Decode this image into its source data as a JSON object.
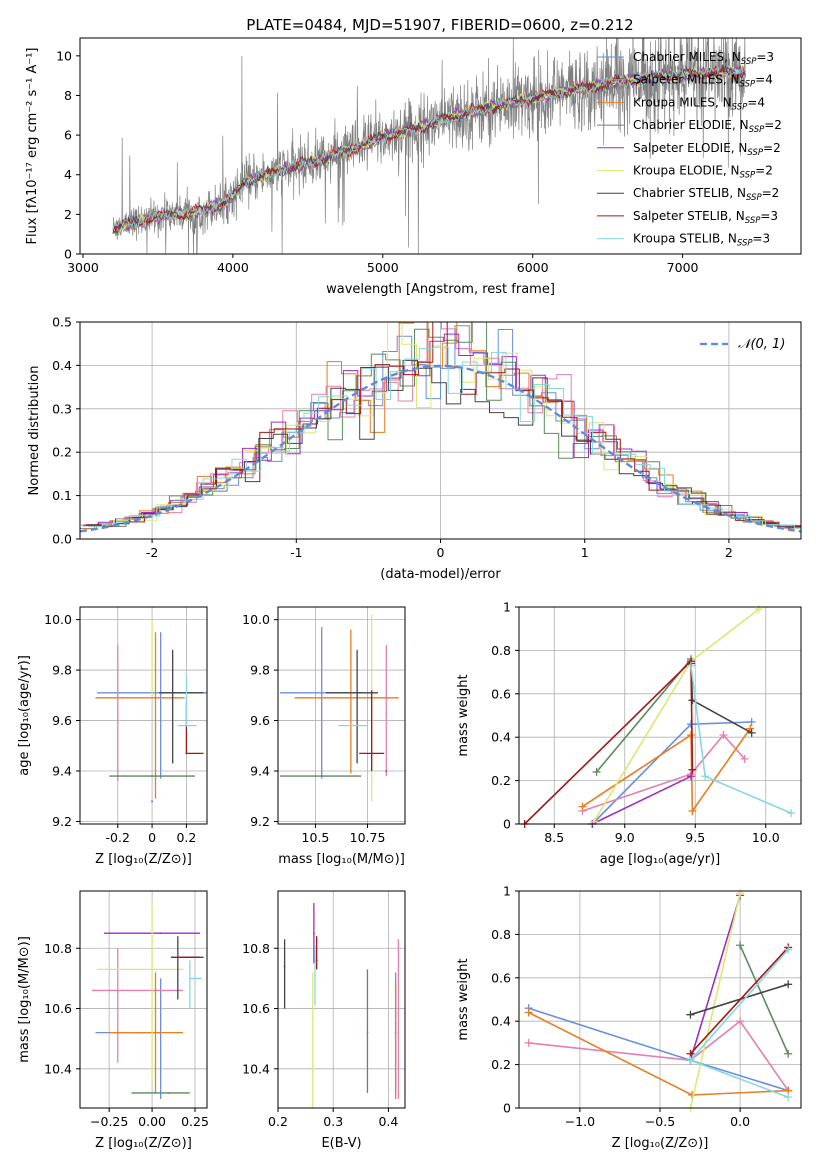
{
  "figure_title": "PLATE=0484, MJD=51907, FIBERID=0600, z=0.212",
  "models": [
    {
      "label": "Chabrier MILES, N",
      "nssp": "=3",
      "color": "#6a8fdd"
    },
    {
      "label": "Salpeter MILES, N",
      "nssp": "=4",
      "color": "#e57fb1"
    },
    {
      "label": "Kroupa MILES, N",
      "nssp": "=4",
      "color": "#e87d22"
    },
    {
      "label": "Chabrier ELODIE, N",
      "nssp": "=2",
      "color": "#5c8b5c"
    },
    {
      "label": "Salpeter ELODIE, N",
      "nssp": "=2",
      "color": "#9b30c0"
    },
    {
      "label": "Kroupa ELODIE, N",
      "nssp": "=2",
      "color": "#dce873"
    },
    {
      "label": "Chabrier STELIB, N",
      "nssp": "=2",
      "color": "#444444"
    },
    {
      "label": "Salpeter STELIB, N",
      "nssp": "=3",
      "color": "#a01818"
    },
    {
      "label": "Kroupa STELIB, N",
      "nssp": "=3",
      "color": "#86d8e0"
    }
  ],
  "nssp_sub": "SSP",
  "data_color": "#808080",
  "normal_curve_color": "#5b8bd9",
  "chart_data": [
    {
      "id": "spectrum",
      "type": "line",
      "xlabel": "wavelength [Angstrom, rest frame]",
      "ylabel": "Flux [fλ10⁻¹⁷ erg cm⁻² s⁻¹ A⁻¹]",
      "xlim": [
        2980,
        7790
      ],
      "ylim": [
        0,
        10.9
      ],
      "xticks": [
        3000,
        4000,
        5000,
        6000,
        7000
      ],
      "yticks": [
        0,
        2,
        4,
        6,
        8,
        10
      ],
      "grid": false,
      "legend": "upper right",
      "wavelength_range": [
        3200,
        7420
      ],
      "continuum": [
        [
          3200,
          1.3
        ],
        [
          3500,
          1.9
        ],
        [
          3800,
          2.2
        ],
        [
          3950,
          2.6
        ],
        [
          4100,
          3.7
        ],
        [
          4300,
          4.2
        ],
        [
          4500,
          4.6
        ],
        [
          4800,
          5.3
        ],
        [
          5000,
          5.9
        ],
        [
          5300,
          6.5
        ],
        [
          5600,
          7.2
        ],
        [
          5900,
          7.7
        ],
        [
          6200,
          8.2
        ],
        [
          6500,
          8.6
        ],
        [
          6800,
          8.9
        ],
        [
          7100,
          9.1
        ],
        [
          7420,
          9.2
        ]
      ]
    },
    {
      "id": "residuals",
      "type": "histogram",
      "xlabel": "(data-model)/error",
      "ylabel": "Normed distribution",
      "xlim": [
        -2.5,
        2.5
      ],
      "ylim": [
        0,
        0.5
      ],
      "xticks": [
        -2,
        -1,
        0,
        1,
        2
      ],
      "yticks": [
        0.0,
        0.1,
        0.2,
        0.3,
        0.4,
        0.5
      ],
      "grid": true,
      "legend": "upper right",
      "curve_label": "𝒩(0, 1)",
      "bins": 50
    },
    {
      "id": "age_vs_Z",
      "type": "errorbar",
      "xlabel": "Z [log₁₀(Z/Z⊙)]",
      "ylabel": "age  [log₁₀(age/yr)]",
      "xlim": [
        -0.42,
        0.32
      ],
      "ylim": [
        9.19,
        10.05
      ],
      "xticks": [
        -0.2,
        0.0,
        0.2
      ],
      "ytick_labels": [
        "9.2",
        "9.4",
        "9.6",
        "9.8",
        "10.0"
      ],
      "yticks": [
        9.2,
        9.4,
        9.6,
        9.8,
        10.0
      ],
      "grid": true,
      "points": [
        {
          "m": 0,
          "x": 0.05,
          "xe": [
            0.37,
            0.27
          ],
          "y": 9.71,
          "ye": [
            0.34,
            0.24
          ]
        },
        {
          "m": 1,
          "x": -0.2,
          "xe": [
            0.0,
            0.0
          ],
          "y": 9.63,
          "ye": [
            0.27,
            0.27
          ]
        },
        {
          "m": 2,
          "x": 0.02,
          "xe": [
            0.35,
            0.17
          ],
          "y": 9.69,
          "ye": [
            0.4,
            0.26
          ]
        },
        {
          "m": 3,
          "x": 0.0,
          "xe": [
            0.25,
            0.25
          ],
          "y": 9.38,
          "ye": [
            0.0,
            0.0
          ]
        },
        {
          "m": 4,
          "x": 0.0,
          "xe": [
            0.0,
            0.0
          ],
          "y": 9.28,
          "ye": [
            0.0,
            0.0
          ]
        },
        {
          "m": 5,
          "x": 0.0,
          "xe": [
            0.0,
            0.0
          ],
          "y": 9.7,
          "ye": [
            0.0,
            0.3
          ]
        },
        {
          "m": 6,
          "x": 0.12,
          "xe": [
            0.08,
            0.18
          ],
          "y": 9.71,
          "ye": [
            0.28,
            0.17
          ]
        },
        {
          "m": 7,
          "x": 0.2,
          "xe": [
            0.0,
            0.1
          ],
          "y": 9.47,
          "ye": [
            0.0,
            0.2
          ]
        },
        {
          "m": 8,
          "x": 0.2,
          "xe": [
            0.05,
            0.06
          ],
          "y": 9.58,
          "ye": [
            0.0,
            0.2
          ]
        }
      ]
    },
    {
      "id": "age_vs_mass",
      "type": "errorbar",
      "xlabel": "mass [log₁₀(M/M⊙)]",
      "ylabel": "",
      "xlim": [
        10.32,
        10.93
      ],
      "ylim": [
        9.19,
        10.05
      ],
      "xticks": [
        10.5,
        10.75
      ],
      "ytick_labels": [
        "9.2",
        "9.4",
        "9.6",
        "9.8",
        "10.0"
      ],
      "yticks": [
        9.2,
        9.4,
        9.6,
        9.8,
        10.0
      ],
      "grid": true,
      "points": [
        {
          "m": 0,
          "x": 10.53,
          "xe": [
            0.2,
            0.2
          ],
          "y": 9.71,
          "ye": [
            0.34,
            0.26
          ]
        },
        {
          "m": 1,
          "x": 10.84,
          "xe": [
            0.0,
            0.0
          ],
          "y": 9.63,
          "ye": [
            0.25,
            0.27
          ]
        },
        {
          "m": 2,
          "x": 10.67,
          "xe": [
            0.27,
            0.23
          ],
          "y": 9.69,
          "ye": [
            0.3,
            0.27
          ]
        },
        {
          "m": 3,
          "x": 10.53,
          "xe": [
            0.2,
            0.19
          ],
          "y": 9.38,
          "ye": [
            0.0,
            0.0
          ]
        },
        {
          "m": 4,
          "x": 10.84,
          "xe": [
            0.0,
            0.0
          ],
          "y": 9.4,
          "ye": [
            0.0,
            0.0
          ]
        },
        {
          "m": 5,
          "x": 10.77,
          "xe": [
            0.0,
            0.0
          ],
          "y": 9.65,
          "ye": [
            0.37,
            0.37
          ]
        },
        {
          "m": 6,
          "x": 10.7,
          "xe": [
            0.15,
            0.1
          ],
          "y": 9.71,
          "ye": [
            0.28,
            0.17
          ]
        },
        {
          "m": 7,
          "x": 10.77,
          "xe": [
            0.06,
            0.06
          ],
          "y": 9.47,
          "ye": [
            0.07,
            0.25
          ]
        },
        {
          "m": 8,
          "x": 10.71,
          "xe": [
            0.1,
            0.04
          ],
          "y": 9.58,
          "ye": [
            0.0,
            0.0
          ]
        }
      ]
    },
    {
      "id": "weight_vs_age",
      "type": "line",
      "xlabel": "age  [log₁₀(age/yr)]",
      "ylabel": "mass weight",
      "xlim": [
        8.25,
        10.25
      ],
      "ylim": [
        0,
        1
      ],
      "xticks": [
        8.5,
        9.0,
        9.5,
        10.0
      ],
      "xtick_labels": [
        "8.5",
        "9.0",
        "9.5",
        "10.0"
      ],
      "yticks": [
        0,
        0.2,
        0.4,
        0.6,
        0.8,
        1.0
      ],
      "grid": true,
      "series": [
        {
          "m": 0,
          "x": [
            8.77,
            9.47,
            9.9
          ],
          "y": [
            0.0,
            0.46,
            0.47
          ]
        },
        {
          "m": 1,
          "x": [
            8.7,
            9.47,
            9.7,
            9.85
          ],
          "y": [
            0.06,
            0.23,
            0.41,
            0.3
          ]
        },
        {
          "m": 2,
          "x": [
            8.7,
            9.47,
            9.48,
            9.89
          ],
          "y": [
            0.08,
            0.41,
            0.06,
            0.44
          ]
        },
        {
          "m": 3,
          "x": [
            8.8,
            9.47
          ],
          "y": [
            0.24,
            0.76
          ]
        },
        {
          "m": 4,
          "x": [
            8.77,
            9.47
          ],
          "y": [
            0.0,
            0.22
          ]
        },
        {
          "m": 5,
          "x": [
            8.78,
            9.47,
            9.95
          ],
          "y": [
            0.01,
            0.75,
            0.99
          ]
        },
        {
          "m": 6,
          "x": [
            9.47,
            9.48,
            9.9
          ],
          "y": [
            0.74,
            0.57,
            0.42
          ]
        },
        {
          "m": 7,
          "x": [
            8.29,
            9.47,
            9.48
          ],
          "y": [
            0.0,
            0.75,
            0.25
          ]
        },
        {
          "m": 8,
          "x": [
            9.47,
            9.57,
            10.18
          ],
          "y": [
            0.73,
            0.22,
            0.05
          ]
        }
      ]
    },
    {
      "id": "mass_vs_Z",
      "type": "errorbar",
      "xlabel": "Z [log₁₀(Z/Z⊙)]",
      "ylabel": "mass [log₁₀(M/M⊙)]",
      "xlim": [
        -0.42,
        0.32
      ],
      "ylim": [
        10.27,
        10.99
      ],
      "xticks": [
        -0.25,
        0.0,
        0.25
      ],
      "xtick_labels": [
        "−0.25",
        "0.00",
        "0.25"
      ],
      "yticks": [
        10.4,
        10.6,
        10.8
      ],
      "ytick_labels": [
        "10.4",
        "10.6",
        "10.8"
      ],
      "grid": true,
      "points": [
        {
          "m": 0,
          "x": 0.05,
          "xe": [
            0.38,
            0.0
          ],
          "y": 10.52,
          "ye": [
            0.22,
            0.18
          ]
        },
        {
          "m": 1,
          "x": -0.2,
          "xe": [
            0.15,
            0.38
          ],
          "y": 10.66,
          "ye": [
            0.24,
            0.14
          ]
        },
        {
          "m": 2,
          "x": 0.02,
          "xe": [
            0.27,
            0.16
          ],
          "y": 10.52,
          "ye": [
            0.2,
            0.2
          ]
        },
        {
          "m": 3,
          "x": 0.1,
          "xe": [
            0.22,
            0.12
          ],
          "y": 10.32,
          "ye": [
            0.0,
            0.0
          ]
        },
        {
          "m": 4,
          "x": 0.05,
          "xe": [
            0.33,
            0.23
          ],
          "y": 10.85,
          "ye": [
            0.0,
            0.0
          ]
        },
        {
          "m": 5,
          "x": 0.0,
          "xe": [
            0.32,
            0.18
          ],
          "y": 10.73,
          "ye": [
            0.37,
            0.22
          ]
        },
        {
          "m": 6,
          "x": 0.15,
          "xe": [
            0.0,
            0.15
          ],
          "y": 10.77,
          "ye": [
            0.14,
            0.07
          ]
        },
        {
          "m": 7,
          "x": 0.2,
          "xe": [
            0.09,
            0.08
          ],
          "y": 10.77,
          "ye": [
            0.0,
            0.0
          ]
        },
        {
          "m": 8,
          "x": 0.22,
          "xe": [
            0.0,
            0.07
          ],
          "y": 10.7,
          "ye": [
            0.1,
            0.06
          ]
        }
      ]
    },
    {
      "id": "mass_vs_ebv",
      "type": "errorbar",
      "xlabel": "E(B-V)",
      "ylabel": "",
      "xlim": [
        0.2,
        0.43
      ],
      "ylim": [
        10.27,
        10.99
      ],
      "xticks": [
        0.2,
        0.3,
        0.4
      ],
      "xtick_labels": [
        "0.2",
        "0.3",
        "0.4"
      ],
      "yticks": [
        10.4,
        10.6,
        10.8
      ],
      "ytick_labels": [
        "10.4",
        "10.6",
        "10.8"
      ],
      "grid": true,
      "points": [
        {
          "m": 0,
          "x": 0.413,
          "ye": [
            0.2,
            0.2
          ],
          "y": 10.52
        },
        {
          "m": 1,
          "x": 0.418,
          "ye": [
            0.22,
            0.31
          ],
          "y": 10.52
        },
        {
          "m": 2,
          "x": 0.413,
          "ye": [
            0.25,
            0.15
          ],
          "y": 10.55
        },
        {
          "m": 3,
          "x": 0.362,
          "ye": [
            0.2,
            0.21
          ],
          "y": 10.52
        },
        {
          "m": 4,
          "x": 0.265,
          "ye": [
            0.1,
            0.1
          ],
          "y": 10.85
        },
        {
          "m": 5,
          "x": 0.263,
          "ye": [
            0.53,
            0.15
          ],
          "y": 10.57
        },
        {
          "m": 6,
          "x": 0.212,
          "ye": [
            0.14,
            0.09
          ],
          "y": 10.74
        },
        {
          "m": 7,
          "x": 0.27,
          "ye": [
            0.03,
            0.08
          ],
          "y": 10.76
        },
        {
          "m": 8,
          "x": 0.267,
          "ye": [
            0.1,
            0.1
          ],
          "y": 10.71
        }
      ]
    },
    {
      "id": "weight_vs_Z",
      "type": "line",
      "xlabel": "Z [log₁₀(Z/Z⊙)]",
      "ylabel": "mass weight",
      "xlim": [
        -1.38,
        0.38
      ],
      "ylim": [
        0,
        1
      ],
      "xticks": [
        -1.0,
        -0.5,
        0.0
      ],
      "xtick_labels": [
        "−1.0",
        "−0.5",
        "0.0"
      ],
      "yticks": [
        0,
        0.2,
        0.4,
        0.6,
        0.8,
        1.0
      ],
      "grid": true,
      "series": [
        {
          "m": 0,
          "x": [
            -1.32,
            -0.31,
            0.3
          ],
          "y": [
            0.46,
            0.22,
            0.08
          ]
        },
        {
          "m": 1,
          "x": [
            -1.32,
            -0.31,
            0.0,
            0.3
          ],
          "y": [
            0.3,
            0.22,
            0.4,
            0.08
          ]
        },
        {
          "m": 2,
          "x": [
            -1.32,
            -0.3,
            0.3
          ],
          "y": [
            0.44,
            0.06,
            0.08
          ]
        },
        {
          "m": 3,
          "x": [
            0.0,
            0.3
          ],
          "y": [
            0.75,
            0.25
          ]
        },
        {
          "m": 4,
          "x": [
            -0.31,
            0.0
          ],
          "y": [
            0.22,
            0.98
          ]
        },
        {
          "m": 5,
          "x": [
            -0.31,
            0.0
          ],
          "y": [
            0.0,
            0.99
          ]
        },
        {
          "m": 6,
          "x": [
            -0.31,
            0.3
          ],
          "y": [
            0.43,
            0.57
          ]
        },
        {
          "m": 7,
          "x": [
            -0.31,
            0.3
          ],
          "y": [
            0.25,
            0.74
          ]
        },
        {
          "m": 8,
          "x": [
            0.3,
            -0.31,
            0.3
          ],
          "y": [
            0.73,
            0.22,
            0.05
          ]
        }
      ]
    }
  ]
}
